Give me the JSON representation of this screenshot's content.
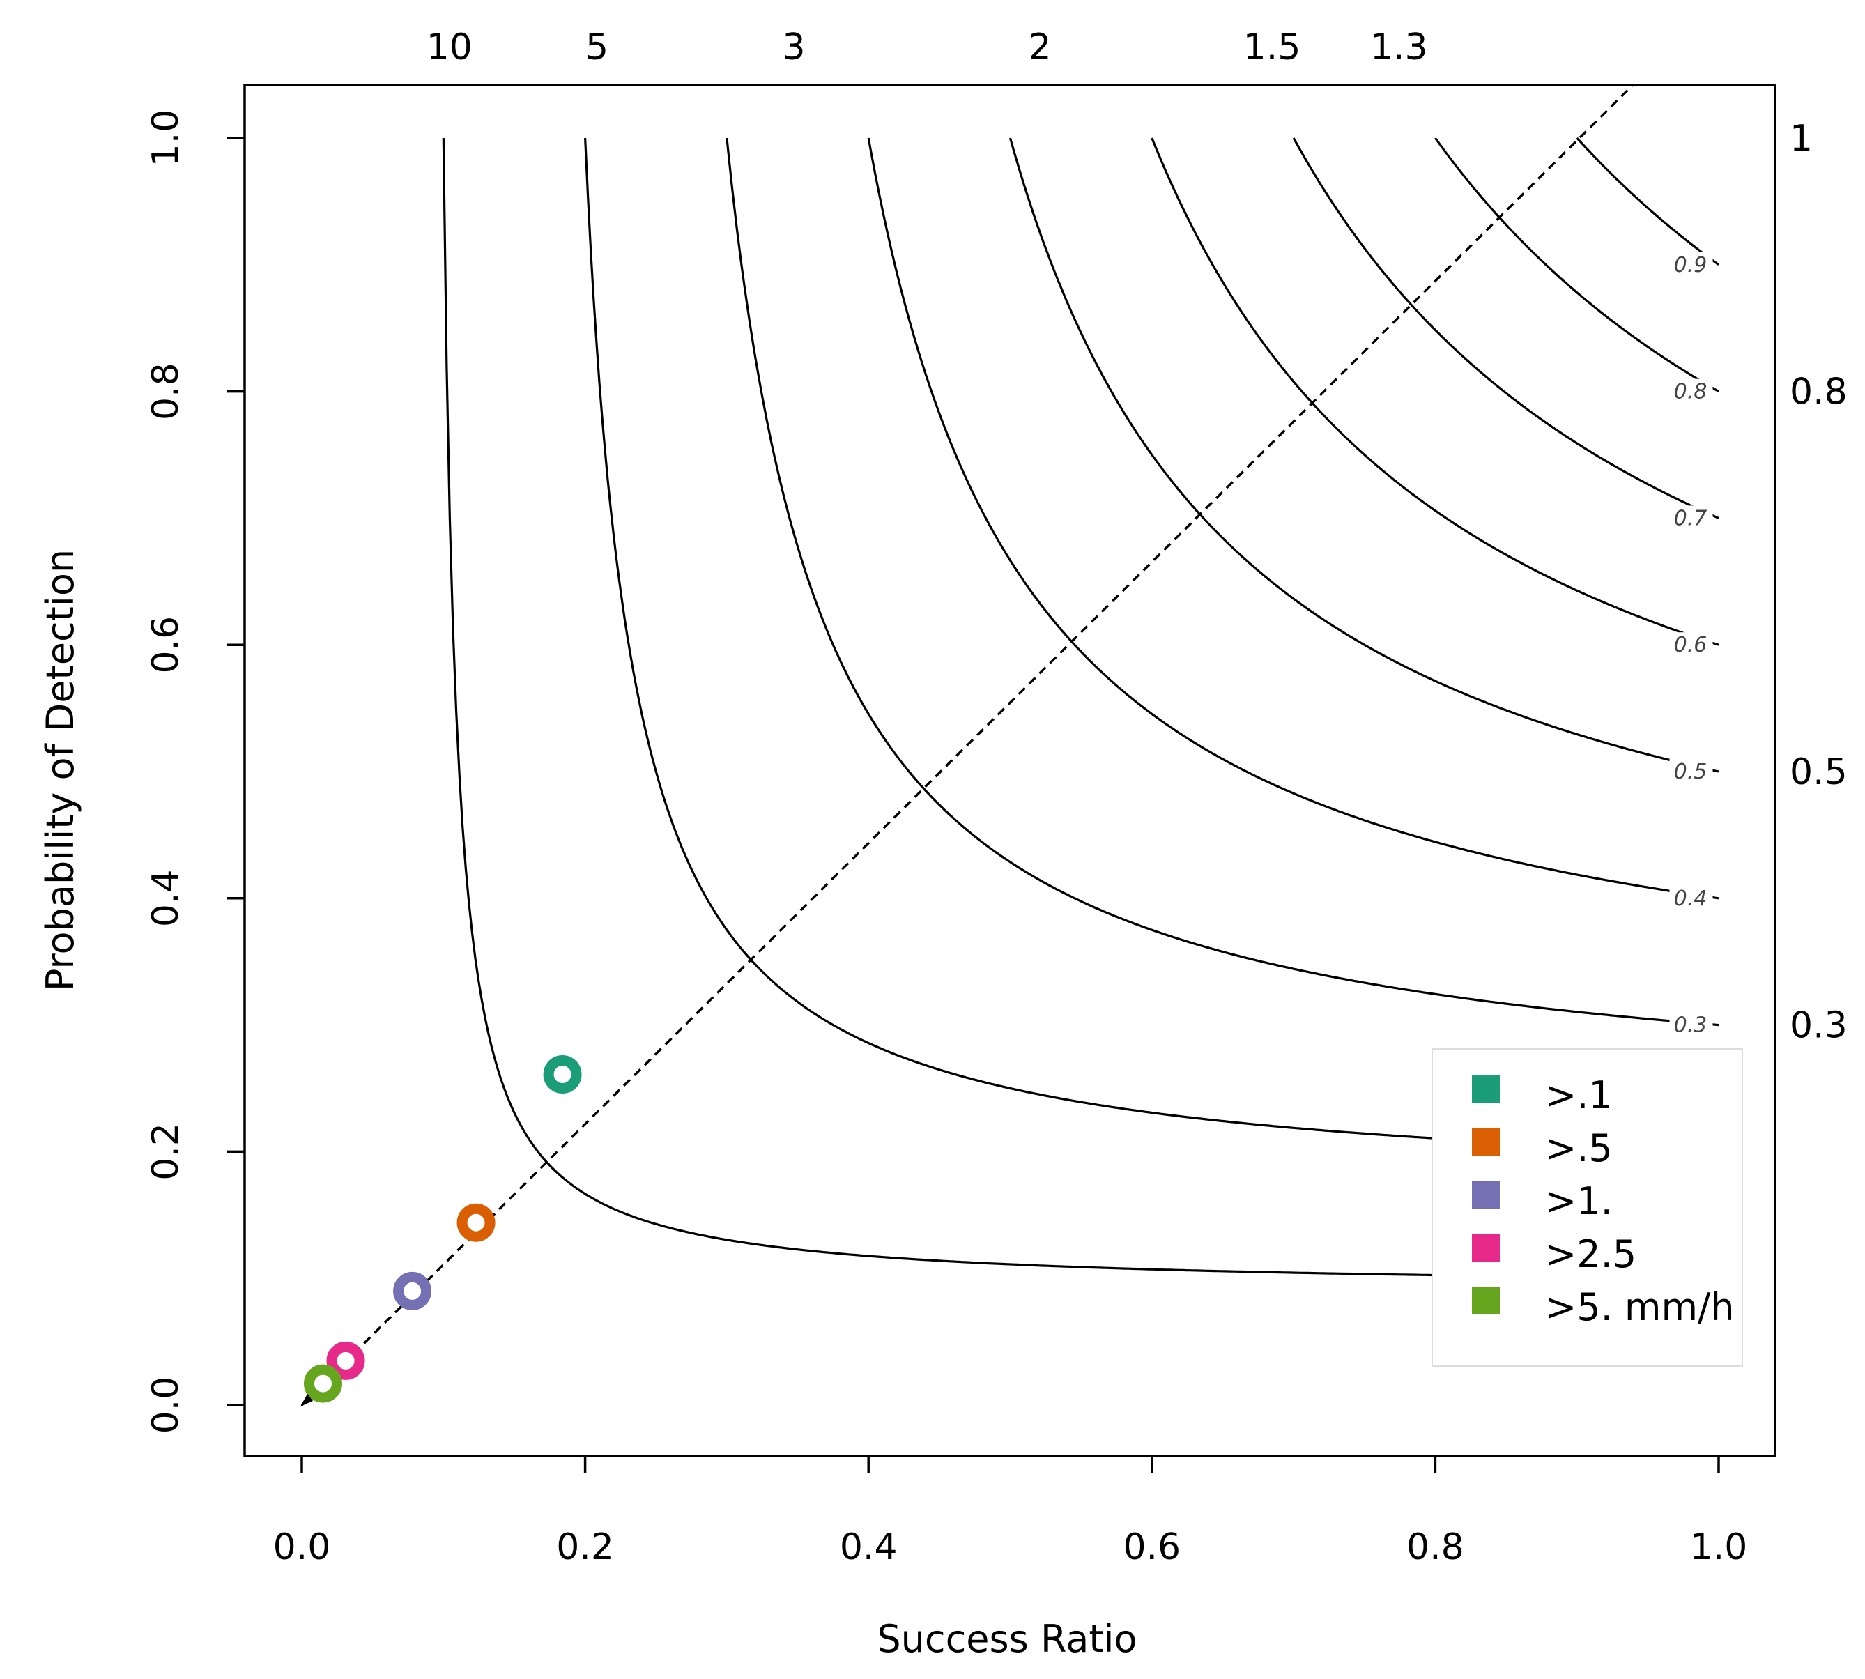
{
  "chart_data": {
    "type": "scatter",
    "xlabel": "Success Ratio",
    "ylabel": "Probability of Detection",
    "xlim": [
      0,
      1
    ],
    "ylim": [
      0,
      1
    ],
    "x_ticks": [
      "0.0",
      "0.2",
      "0.4",
      "0.6",
      "0.8",
      "1.0"
    ],
    "y_ticks": [
      "0.0",
      "0.2",
      "0.4",
      "0.6",
      "0.8",
      "1.0"
    ],
    "bias_lines": [
      {
        "bias": 10,
        "label": "10",
        "side": "top"
      },
      {
        "bias": 5,
        "label": "5",
        "side": "top"
      },
      {
        "bias": 3,
        "label": "3",
        "side": "top"
      },
      {
        "bias": 2,
        "label": "2",
        "side": "top"
      },
      {
        "bias": 1.5,
        "label": "1.5",
        "side": "top"
      },
      {
        "bias": 1.3,
        "label": "1.3",
        "side": "top"
      },
      {
        "bias": 1,
        "label": "1",
        "side": "right"
      },
      {
        "bias": 0.8,
        "label": "0.8",
        "side": "right"
      },
      {
        "bias": 0.5,
        "label": "0.5",
        "side": "right"
      },
      {
        "bias": 0.3,
        "label": "0.3",
        "side": "right"
      }
    ],
    "csi_contours": [
      {
        "csi": 0.1,
        "label": ""
      },
      {
        "csi": 0.2,
        "label": ""
      },
      {
        "csi": 0.3,
        "label": "0.3"
      },
      {
        "csi": 0.4,
        "label": "0.4"
      },
      {
        "csi": 0.5,
        "label": "0.5"
      },
      {
        "csi": 0.6,
        "label": "0.6"
      },
      {
        "csi": 0.7,
        "label": "0.7"
      },
      {
        "csi": 0.8,
        "label": "0.8"
      },
      {
        "csi": 0.9,
        "label": "0.9"
      }
    ],
    "series": [
      {
        "name": ">.1",
        "color": "#1b9e77",
        "x": 0.184,
        "y": 0.261
      },
      {
        "name": ">.5",
        "color": "#d95f02",
        "x": 0.123,
        "y": 0.144
      },
      {
        "name": ">1.",
        "color": "#7570b3",
        "x": 0.078,
        "y": 0.09
      },
      {
        "name": ">2.5",
        "color": "#e7298a",
        "x": 0.031,
        "y": 0.035
      },
      {
        "name": ">5. mm/h",
        "color": "#66a61e",
        "x": 0.015,
        "y": 0.017
      }
    ],
    "legend_position": "bottom-right"
  }
}
